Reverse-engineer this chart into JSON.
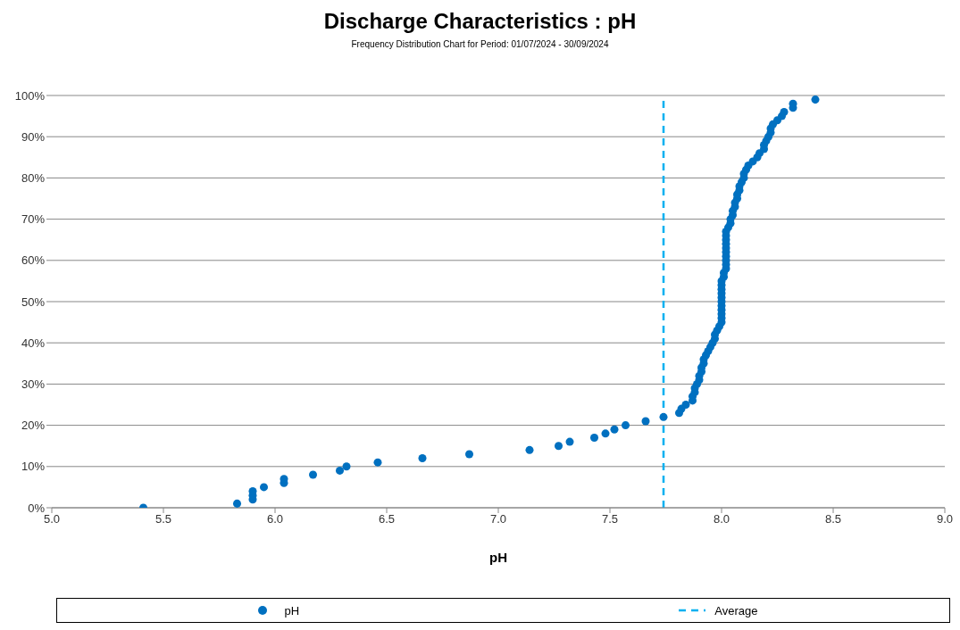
{
  "chart_data": {
    "type": "scatter",
    "title": "Discharge Characteristics : pH",
    "subtitle": "Frequency Distribution Chart for Period: 01/07/2024 - 30/09/2024",
    "xlabel": "pH",
    "x": [
      5.41,
      5.83,
      5.9,
      5.9,
      5.9,
      5.95,
      6.04,
      6.04,
      6.17,
      6.29,
      6.32,
      6.46,
      6.66,
      6.87,
      7.14,
      7.27,
      7.32,
      7.43,
      7.48,
      7.52,
      7.57,
      7.66,
      7.74,
      7.81,
      7.82,
      7.84,
      7.87,
      7.87,
      7.88,
      7.88,
      7.89,
      7.9,
      7.9,
      7.91,
      7.91,
      7.92,
      7.92,
      7.93,
      7.94,
      7.95,
      7.96,
      7.97,
      7.97,
      7.98,
      7.99,
      8.0,
      8.0,
      8.0,
      8.0,
      8.0,
      8.0,
      8.0,
      8.0,
      8.0,
      8.0,
      8.0,
      8.01,
      8.01,
      8.02,
      8.02,
      8.02,
      8.02,
      8.02,
      8.02,
      8.02,
      8.02,
      8.02,
      8.02,
      8.03,
      8.04,
      8.04,
      8.05,
      8.05,
      8.06,
      8.06,
      8.07,
      8.07,
      8.08,
      8.08,
      8.09,
      8.1,
      8.1,
      8.11,
      8.12,
      8.14,
      8.16,
      8.17,
      8.19,
      8.19,
      8.2,
      8.21,
      8.22,
      8.22,
      8.23,
      8.25,
      8.27,
      8.28,
      8.32,
      8.32,
      8.42
    ],
    "series": [
      {
        "name": "pH",
        "color": "#0070c0",
        "values": [
          0,
          1,
          2,
          3,
          4,
          5,
          6,
          7,
          8,
          9,
          10,
          11,
          12,
          13,
          14,
          15,
          16,
          17,
          18,
          19,
          20,
          21,
          22,
          23,
          24,
          25,
          26,
          27,
          28,
          29,
          30,
          31,
          32,
          33,
          34,
          35,
          36,
          37,
          38,
          39,
          40,
          41,
          42,
          43,
          44,
          45,
          46,
          47,
          48,
          49,
          50,
          51,
          52,
          53,
          54,
          55,
          56,
          57,
          58,
          59,
          60,
          61,
          62,
          63,
          64,
          65,
          66,
          67,
          68,
          69,
          70,
          71,
          72,
          73,
          74,
          75,
          76,
          77,
          78,
          79,
          80,
          81,
          82,
          83,
          84,
          85,
          86,
          87,
          88,
          89,
          90,
          91,
          92,
          93,
          94,
          95,
          96,
          97,
          98,
          99
        ]
      }
    ],
    "xlim": [
      5.0,
      9.0
    ],
    "xticks": [
      {
        "value": 5,
        "label": "5.0"
      },
      5.5,
      {
        "value": 6,
        "label": "6.0"
      },
      6.5,
      {
        "value": 7,
        "label": "7.0"
      },
      7.5,
      {
        "value": 8,
        "label": "8.0"
      },
      8.5,
      {
        "value": 9,
        "label": "9.0"
      }
    ],
    "ylim": [
      0,
      100
    ],
    "yticks": [
      {
        "value": 0,
        "label": "0%"
      },
      {
        "value": 10,
        "label": "10%"
      },
      {
        "value": 20,
        "label": "20%"
      },
      {
        "value": 30,
        "label": "30%"
      },
      {
        "value": 40,
        "label": "40%"
      },
      {
        "value": 50,
        "label": "50%"
      },
      {
        "value": 60,
        "label": "60%"
      },
      {
        "value": 70,
        "label": "70%"
      },
      {
        "value": 80,
        "label": "80%"
      },
      {
        "value": 90,
        "label": "90%"
      },
      {
        "value": 100,
        "label": "100%"
      }
    ],
    "ref_lines": [
      {
        "axis": "x",
        "value": 7.74,
        "label": "Average",
        "color": "#00b0f0",
        "line_style": "dashed"
      }
    ],
    "grid": "y",
    "legend": "bottom",
    "marker": "circle"
  }
}
